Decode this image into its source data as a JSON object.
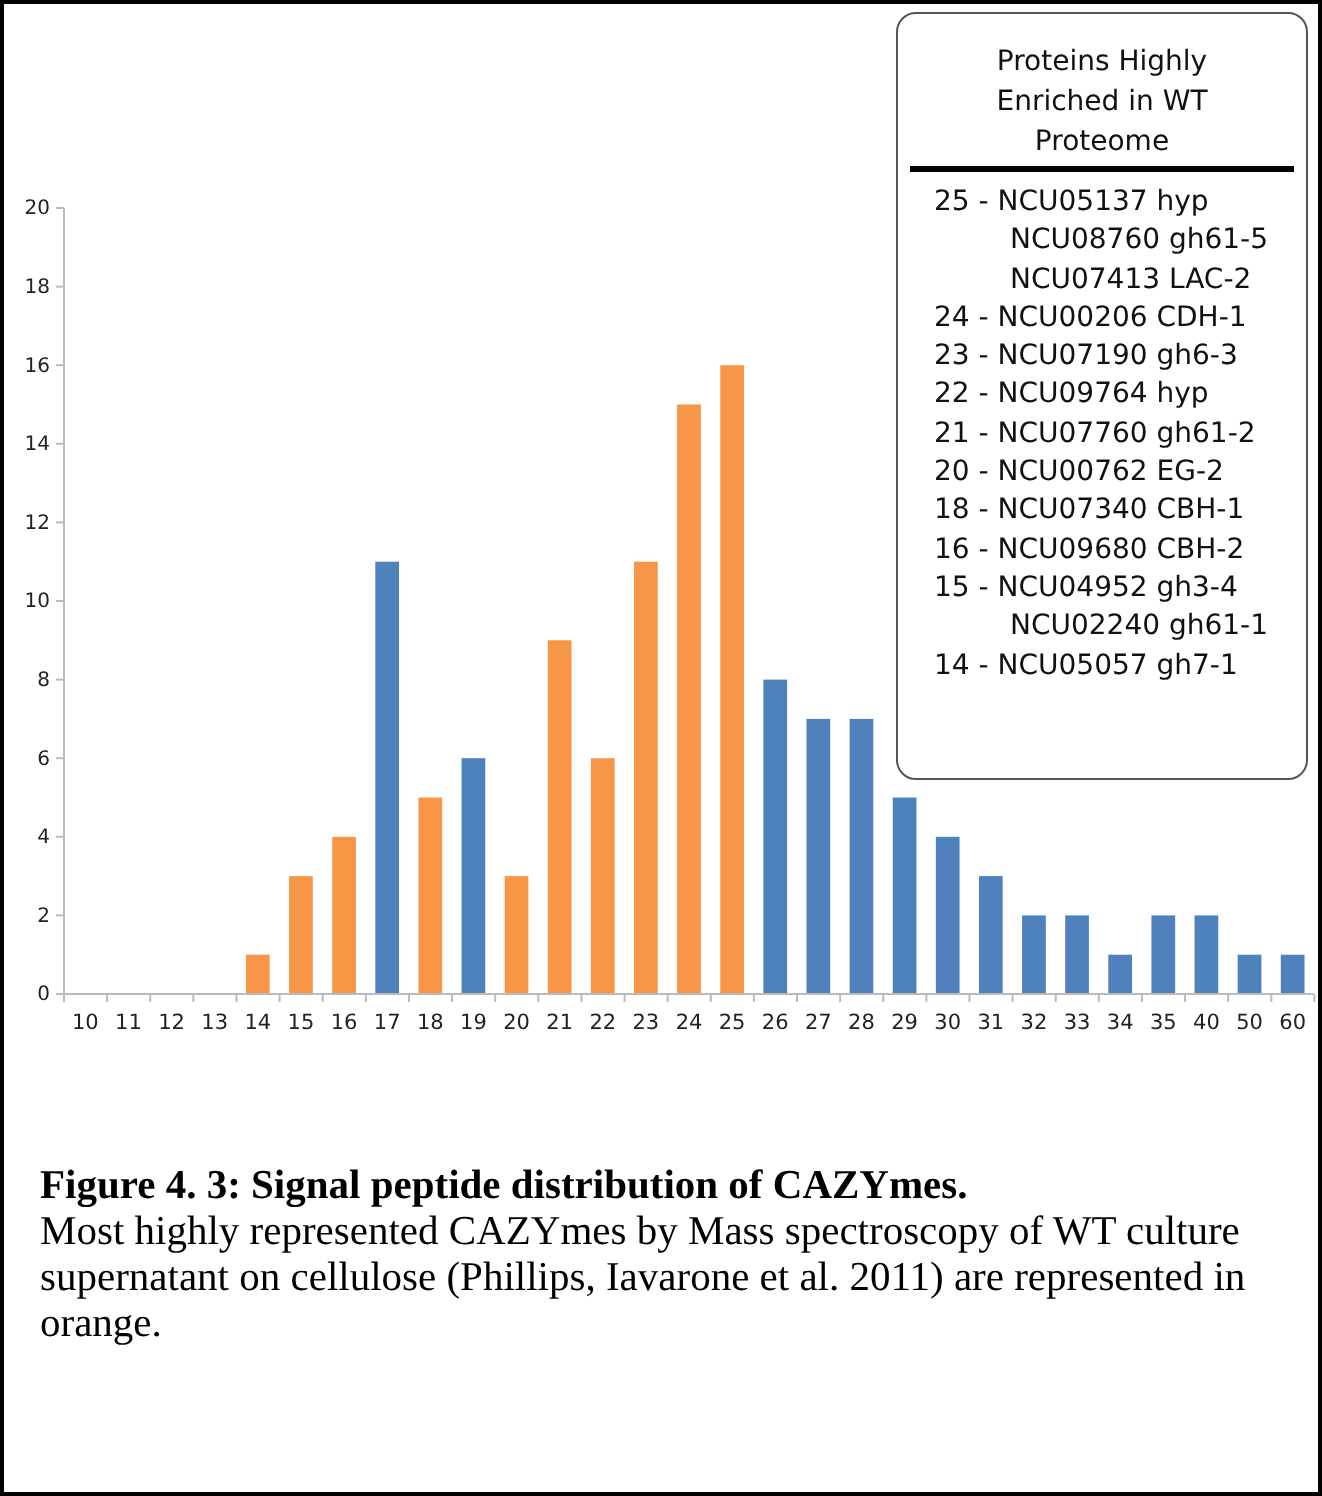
{
  "chart_data": {
    "type": "bar",
    "title": "Figure 4. 3: Signal peptide distribution of CAZYmes.",
    "subtitle": "Most highly represented CAZYmes by Mass spectroscopy of WT culture supernatant on cellulose (Phillips, Iavarone et al. 2011) are represented in orange.",
    "categories": [
      "10",
      "11",
      "12",
      "13",
      "14",
      "15",
      "16",
      "17",
      "18",
      "19",
      "20",
      "21",
      "22",
      "23",
      "24",
      "25",
      "26",
      "27",
      "28",
      "29",
      "30",
      "31",
      "32",
      "33",
      "34",
      "35",
      "40",
      "50",
      "60"
    ],
    "values": [
      0,
      0,
      0,
      0,
      1,
      3,
      4,
      11,
      5,
      6,
      3,
      9,
      6,
      11,
      15,
      16,
      8,
      7,
      7,
      5,
      4,
      3,
      2,
      2,
      1,
      2,
      2,
      1,
      1
    ],
    "colors": [
      "#4f81bd",
      "#4f81bd",
      "#4f81bd",
      "#4f81bd",
      "#f79646",
      "#f79646",
      "#f79646",
      "#4f81bd",
      "#f79646",
      "#4f81bd",
      "#f79646",
      "#f79646",
      "#f79646",
      "#f79646",
      "#f79646",
      "#f79646",
      "#4f81bd",
      "#4f81bd",
      "#4f81bd",
      "#4f81bd",
      "#4f81bd",
      "#4f81bd",
      "#4f81bd",
      "#4f81bd",
      "#4f81bd",
      "#4f81bd",
      "#4f81bd",
      "#4f81bd",
      "#4f81bd"
    ],
    "ylim": [
      0,
      20
    ],
    "yticks": [
      0,
      2,
      4,
      6,
      8,
      10,
      12,
      14,
      16,
      18,
      20
    ],
    "grid": false,
    "annotations": [
      "Proteins Highly Enriched in WT Proteome",
      "25 - NCU05137 hyp",
      "NCU08760 gh61-5",
      "NCU07413 LAC-2",
      "24 - NCU00206 CDH-1",
      "23 - NCU07190 gh6-3",
      "22 - NCU09764 hyp",
      "21 - NCU07760 gh61-2",
      "20 - NCU00762 EG-2",
      "18 - NCU07340 CBH-1",
      "16 - NCU09680 CBH-2",
      "15 - NCU04952 gh3-4",
      "NCU02240 gh61-1",
      "14 - NCU05057 gh7-1"
    ]
  }
}
